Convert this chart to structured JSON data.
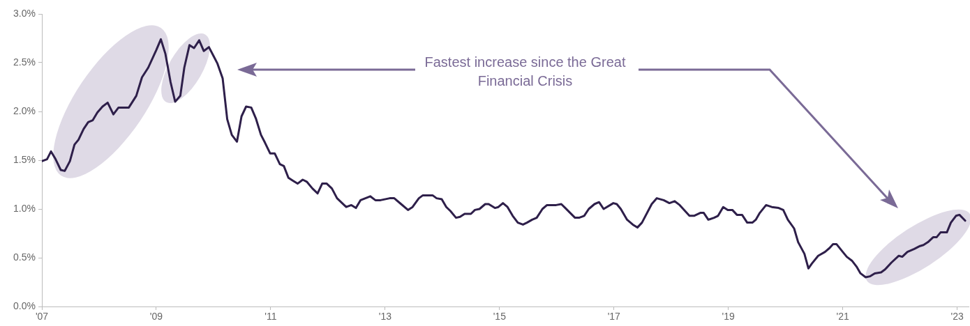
{
  "chart_data": {
    "type": "line",
    "annotations": [
      "Fastest increase since the Great Financial Crisis"
    ],
    "x": [
      2007,
      2007.09,
      2007.16,
      2007.24,
      2007.33,
      2007.4,
      2007.49,
      2007.57,
      2007.64,
      2007.73,
      2007.81,
      2007.89,
      2007.97,
      2008.06,
      2008.15,
      2008.25,
      2008.34,
      2008.46,
      2008.52,
      2008.65,
      2008.75,
      2008.86,
      2009,
      2009.08,
      2009.16,
      2009.25,
      2009.33,
      2009.42,
      2009.49,
      2009.58,
      2009.66,
      2009.75,
      2009.83,
      2009.92,
      2010,
      2010.07,
      2010.16,
      2010.24,
      2010.32,
      2010.41,
      2010.49,
      2010.57,
      2010.66,
      2010.74,
      2010.83,
      2010.9,
      2010.99,
      2011.07,
      2011.16,
      2011.23,
      2011.31,
      2011.39,
      2011.47,
      2011.56,
      2011.63,
      2011.73,
      2011.82,
      2011.9,
      2011.98,
      2012.07,
      2012.16,
      2012.32,
      2012.41,
      2012.49,
      2012.57,
      2012.74,
      2012.83,
      2012.92,
      2013.08,
      2013.16,
      2013.28,
      2013.4,
      2013.48,
      2013.59,
      2013.66,
      2013.74,
      2013.83,
      2013.9,
      2013.99,
      2014.07,
      2014.14,
      2014.24,
      2014.31,
      2014.39,
      2014.5,
      2014.57,
      2014.65,
      2014.75,
      2014.81,
      2014.92,
      2014.98,
      2015.06,
      2015.14,
      2015.23,
      2015.32,
      2015.41,
      2015.48,
      2015.57,
      2015.65,
      2015.75,
      2015.83,
      2015.99,
      2016.08,
      2016.15,
      2016.32,
      2016.39,
      2016.48,
      2016.56,
      2016.66,
      2016.74,
      2016.82,
      2016.99,
      2017.05,
      2017.12,
      2017.23,
      2017.33,
      2017.41,
      2017.49,
      2017.66,
      2017.75,
      2017.87,
      2017.97,
      2018.06,
      2018.15,
      2018.32,
      2018.4,
      2018.51,
      2018.57,
      2018.65,
      2018.75,
      2018.82,
      2018.91,
      2018.99,
      2019.07,
      2019.15,
      2019.24,
      2019.33,
      2019.42,
      2019.48,
      2019.55,
      2019.66,
      2019.76,
      2019.88,
      2019.96,
      2020.04,
      2020.15,
      2020.22,
      2020.33,
      2020.4,
      2020.46,
      2020.57,
      2020.69,
      2020.77,
      2020.83,
      2020.89,
      2021,
      2021.07,
      2021.16,
      2021.24,
      2021.31,
      2021.4,
      2021.48,
      2021.56,
      2021.67,
      2021.74,
      2021.85,
      2021.98,
      2022.04,
      2022.13,
      2022.25,
      2022.35,
      2022.41,
      2022.49,
      2022.58,
      2022.64,
      2022.71,
      2022.82,
      2022.89,
      2022.98,
      2023.04,
      2023.14
    ],
    "series": [
      {
        "color": "#2e1f4a",
        "values": [
          1.49,
          1.51,
          1.59,
          1.51,
          1.4,
          1.39,
          1.49,
          1.66,
          1.71,
          1.82,
          1.89,
          1.91,
          1.99,
          2.05,
          2.09,
          1.97,
          2.04,
          2.04,
          2.04,
          2.16,
          2.35,
          2.45,
          2.63,
          2.74,
          2.59,
          2.3,
          2.1,
          2.16,
          2.45,
          2.68,
          2.65,
          2.73,
          2.62,
          2.66,
          2.57,
          2.49,
          2.34,
          1.92,
          1.76,
          1.69,
          1.95,
          2.05,
          2.04,
          1.93,
          1.76,
          1.68,
          1.57,
          1.57,
          1.46,
          1.44,
          1.32,
          1.29,
          1.26,
          1.3,
          1.28,
          1.21,
          1.16,
          1.26,
          1.26,
          1.21,
          1.11,
          1.02,
          1.04,
          1.01,
          1.09,
          1.13,
          1.09,
          1.09,
          1.11,
          1.11,
          1.05,
          0.99,
          1.02,
          1.11,
          1.14,
          1.14,
          1.14,
          1.11,
          1.1,
          1.02,
          0.98,
          0.91,
          0.92,
          0.95,
          0.95,
          0.99,
          1,
          1.05,
          1.05,
          1.01,
          1.02,
          1.06,
          1.02,
          0.93,
          0.86,
          0.84,
          0.86,
          0.89,
          0.91,
          1,
          1.04,
          1.04,
          1.05,
          1.01,
          0.91,
          0.91,
          0.93,
          1,
          1.05,
          1.07,
          1,
          1.06,
          1.05,
          1,
          0.89,
          0.84,
          0.81,
          0.86,
          1.05,
          1.11,
          1.09,
          1.06,
          1.08,
          1.04,
          0.93,
          0.93,
          0.96,
          0.96,
          0.89,
          0.91,
          0.93,
          1.02,
          0.99,
          0.99,
          0.94,
          0.94,
          0.86,
          0.86,
          0.89,
          0.96,
          1.04,
          1.02,
          1.01,
          0.99,
          0.89,
          0.8,
          0.66,
          0.54,
          0.39,
          0.44,
          0.52,
          0.56,
          0.6,
          0.64,
          0.64,
          0.56,
          0.51,
          0.47,
          0.41,
          0.34,
          0.3,
          0.31,
          0.34,
          0.35,
          0.38,
          0.45,
          0.52,
          0.51,
          0.56,
          0.59,
          0.62,
          0.63,
          0.66,
          0.71,
          0.71,
          0.76,
          0.76,
          0.86,
          0.93,
          0.94,
          0.88
        ]
      }
    ],
    "xlim": [
      2007,
      2023.2
    ],
    "xticks": [
      {
        "value": 2007,
        "label": "'07"
      },
      {
        "value": 2009,
        "label": "'09"
      },
      {
        "value": 2011,
        "label": "'11"
      },
      {
        "value": 2013,
        "label": "'13"
      },
      {
        "value": 2015,
        "label": "'15"
      },
      {
        "value": 2017,
        "label": "'17"
      },
      {
        "value": 2019,
        "label": "'19"
      },
      {
        "value": 2021,
        "label": "'21"
      },
      {
        "value": 2023,
        "label": "'23"
      }
    ],
    "ylim": [
      0,
      3
    ],
    "yticks": [
      {
        "value": 0,
        "label": "0.0%"
      },
      {
        "value": 0.5,
        "label": "0.5%"
      },
      {
        "value": 1,
        "label": "1.0%"
      },
      {
        "value": 1.5,
        "label": "1.5%"
      },
      {
        "value": 2,
        "label": "2.0%"
      },
      {
        "value": 2.5,
        "label": "2.5%"
      },
      {
        "value": 3,
        "label": "3.0%"
      }
    ],
    "grid": false,
    "legend": false,
    "marker": "none",
    "line_style": "solid"
  }
}
